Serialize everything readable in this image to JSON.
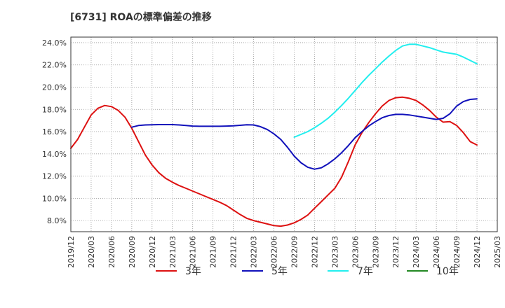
{
  "chart_data": {
    "type": "line",
    "title": "[6731]  ROAの標準偏差の推移",
    "x_tick_labels": [
      "2019/12",
      "2020/03",
      "2020/06",
      "2020/09",
      "2020/12",
      "2021/03",
      "2021/06",
      "2021/09",
      "2021/12",
      "2022/03",
      "2022/06",
      "2022/09",
      "2022/12",
      "2023/03",
      "2023/06",
      "2023/09",
      "2023/12",
      "2024/03",
      "2024/06",
      "2024/09",
      "2024/12",
      "2025/03"
    ],
    "y_tick_labels": [
      "8.0%",
      "10.0%",
      "12.0%",
      "14.0%",
      "16.0%",
      "18.0%",
      "20.0%",
      "22.0%",
      "24.0%"
    ],
    "ylim": [
      7.0,
      24.5
    ],
    "xlim": [
      "2019/12",
      "2025/03"
    ],
    "grid": true,
    "legend_position": "bottom",
    "series": [
      {
        "name": "3年",
        "color": "#dd1111",
        "points": [
          [
            "2019/12",
            14.5
          ],
          [
            "2020/01",
            15.3
          ],
          [
            "2020/02",
            16.4
          ],
          [
            "2020/03",
            17.5
          ],
          [
            "2020/04",
            18.1
          ],
          [
            "2020/05",
            18.35
          ],
          [
            "2020/06",
            18.25
          ],
          [
            "2020/07",
            17.9
          ],
          [
            "2020/08",
            17.3
          ],
          [
            "2020/09",
            16.3
          ],
          [
            "2020/10",
            15.1
          ],
          [
            "2020/11",
            13.9
          ],
          [
            "2020/12",
            13.0
          ],
          [
            "2021/01",
            12.3
          ],
          [
            "2021/02",
            11.8
          ],
          [
            "2021/03",
            11.45
          ],
          [
            "2021/04",
            11.15
          ],
          [
            "2021/05",
            10.9
          ],
          [
            "2021/06",
            10.65
          ],
          [
            "2021/07",
            10.4
          ],
          [
            "2021/08",
            10.15
          ],
          [
            "2021/09",
            9.9
          ],
          [
            "2021/10",
            9.65
          ],
          [
            "2021/11",
            9.35
          ],
          [
            "2021/12",
            8.95
          ],
          [
            "2022/01",
            8.55
          ],
          [
            "2022/02",
            8.2
          ],
          [
            "2022/03",
            8.0
          ],
          [
            "2022/04",
            7.85
          ],
          [
            "2022/05",
            7.7
          ],
          [
            "2022/06",
            7.55
          ],
          [
            "2022/07",
            7.5
          ],
          [
            "2022/08",
            7.6
          ],
          [
            "2022/09",
            7.8
          ],
          [
            "2022/10",
            8.1
          ],
          [
            "2022/11",
            8.5
          ],
          [
            "2022/12",
            9.1
          ],
          [
            "2023/01",
            9.7
          ],
          [
            "2023/02",
            10.3
          ],
          [
            "2023/03",
            10.9
          ],
          [
            "2023/04",
            11.9
          ],
          [
            "2023/05",
            13.3
          ],
          [
            "2023/06",
            14.8
          ],
          [
            "2023/07",
            15.9
          ],
          [
            "2023/08",
            16.8
          ],
          [
            "2023/09",
            17.6
          ],
          [
            "2023/10",
            18.3
          ],
          [
            "2023/11",
            18.8
          ],
          [
            "2023/12",
            19.05
          ],
          [
            "2024/01",
            19.1
          ],
          [
            "2024/02",
            19.0
          ],
          [
            "2024/03",
            18.8
          ],
          [
            "2024/04",
            18.4
          ],
          [
            "2024/05",
            17.9
          ],
          [
            "2024/06",
            17.3
          ],
          [
            "2024/07",
            16.85
          ],
          [
            "2024/08",
            16.9
          ],
          [
            "2024/09",
            16.55
          ],
          [
            "2024/10",
            15.9
          ],
          [
            "2024/11",
            15.1
          ],
          [
            "2024/12",
            14.8
          ]
        ]
      },
      {
        "name": "5年",
        "color": "#1111bb",
        "points": [
          [
            "2020/09",
            16.4
          ],
          [
            "2020/10",
            16.55
          ],
          [
            "2020/11",
            16.6
          ],
          [
            "2020/12",
            16.62
          ],
          [
            "2021/01",
            16.63
          ],
          [
            "2021/02",
            16.63
          ],
          [
            "2021/03",
            16.63
          ],
          [
            "2021/04",
            16.6
          ],
          [
            "2021/05",
            16.55
          ],
          [
            "2021/06",
            16.5
          ],
          [
            "2021/07",
            16.48
          ],
          [
            "2021/08",
            16.48
          ],
          [
            "2021/09",
            16.48
          ],
          [
            "2021/10",
            16.48
          ],
          [
            "2021/11",
            16.5
          ],
          [
            "2021/12",
            16.52
          ],
          [
            "2022/01",
            16.57
          ],
          [
            "2022/02",
            16.62
          ],
          [
            "2022/03",
            16.6
          ],
          [
            "2022/04",
            16.45
          ],
          [
            "2022/05",
            16.2
          ],
          [
            "2022/06",
            15.8
          ],
          [
            "2022/07",
            15.3
          ],
          [
            "2022/08",
            14.6
          ],
          [
            "2022/09",
            13.8
          ],
          [
            "2022/10",
            13.2
          ],
          [
            "2022/11",
            12.8
          ],
          [
            "2022/12",
            12.62
          ],
          [
            "2023/01",
            12.75
          ],
          [
            "2023/02",
            13.1
          ],
          [
            "2023/03",
            13.55
          ],
          [
            "2023/04",
            14.1
          ],
          [
            "2023/05",
            14.75
          ],
          [
            "2023/06",
            15.45
          ],
          [
            "2023/07",
            16.0
          ],
          [
            "2023/08",
            16.5
          ],
          [
            "2023/09",
            16.9
          ],
          [
            "2023/10",
            17.25
          ],
          [
            "2023/11",
            17.45
          ],
          [
            "2023/12",
            17.55
          ],
          [
            "2024/01",
            17.55
          ],
          [
            "2024/02",
            17.5
          ],
          [
            "2024/03",
            17.4
          ],
          [
            "2024/04",
            17.3
          ],
          [
            "2024/05",
            17.2
          ],
          [
            "2024/06",
            17.1
          ],
          [
            "2024/07",
            17.2
          ],
          [
            "2024/08",
            17.6
          ],
          [
            "2024/09",
            18.3
          ],
          [
            "2024/10",
            18.7
          ],
          [
            "2024/11",
            18.9
          ],
          [
            "2024/12",
            18.95
          ]
        ]
      },
      {
        "name": "7年",
        "color": "#22eeee",
        "points": [
          [
            "2022/09",
            15.5
          ],
          [
            "2022/10",
            15.75
          ],
          [
            "2022/11",
            16.0
          ],
          [
            "2022/12",
            16.35
          ],
          [
            "2023/01",
            16.75
          ],
          [
            "2023/02",
            17.2
          ],
          [
            "2023/03",
            17.75
          ],
          [
            "2023/04",
            18.35
          ],
          [
            "2023/05",
            19.0
          ],
          [
            "2023/06",
            19.7
          ],
          [
            "2023/07",
            20.4
          ],
          [
            "2023/08",
            21.05
          ],
          [
            "2023/09",
            21.65
          ],
          [
            "2023/10",
            22.25
          ],
          [
            "2023/11",
            22.8
          ],
          [
            "2023/12",
            23.3
          ],
          [
            "2024/01",
            23.7
          ],
          [
            "2024/02",
            23.85
          ],
          [
            "2024/03",
            23.85
          ],
          [
            "2024/04",
            23.7
          ],
          [
            "2024/05",
            23.55
          ],
          [
            "2024/06",
            23.35
          ],
          [
            "2024/07",
            23.15
          ],
          [
            "2024/08",
            23.05
          ],
          [
            "2024/09",
            22.95
          ],
          [
            "2024/10",
            22.7
          ],
          [
            "2024/11",
            22.4
          ],
          [
            "2024/12",
            22.1
          ]
        ]
      },
      {
        "name": "10年",
        "color": "#228822",
        "points": []
      }
    ]
  }
}
